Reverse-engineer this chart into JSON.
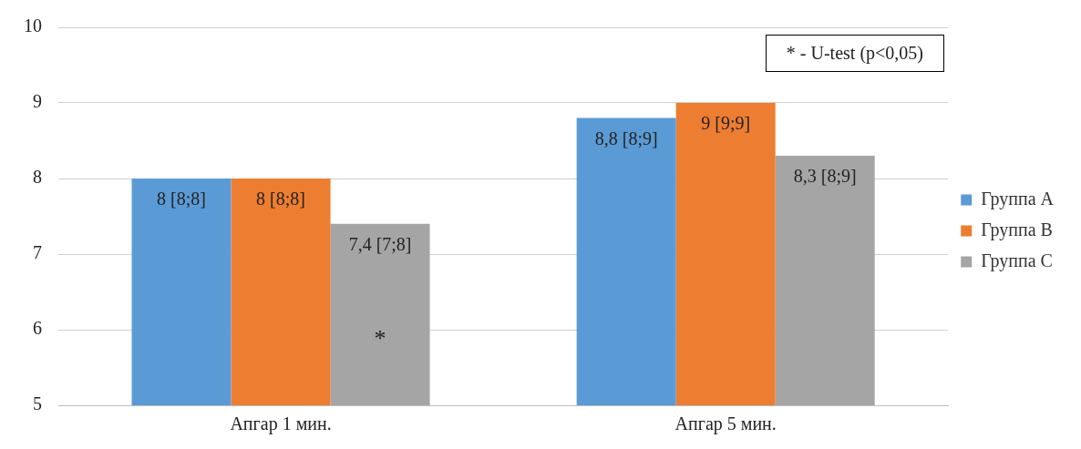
{
  "chart_data": {
    "type": "bar",
    "categories": [
      "Апгар 1 мин.",
      "Апгар 5 мин."
    ],
    "series": [
      {
        "name": "Группа A",
        "color": "#5b9bd5",
        "values": [
          8,
          8.8
        ],
        "value_labels": [
          "8 [8;8]",
          "8,8 [8;9]"
        ]
      },
      {
        "name": "Группа B",
        "color": "#ed7d31",
        "values": [
          8,
          9
        ],
        "value_labels": [
          "8 [8;8]",
          "9 [9;9]"
        ]
      },
      {
        "name": "Группа C",
        "color": "#a5a5a5",
        "values": [
          7.4,
          8.3
        ],
        "value_labels": [
          "7,4 [7;8]",
          "8,3 [8;9]"
        ]
      }
    ],
    "ylim": [
      5,
      10
    ],
    "yticks": [
      5,
      6,
      7,
      8,
      9,
      10
    ],
    "grid": "y",
    "legend": "right",
    "annotations": [
      "* - U-test (p<0,05)",
      "*"
    ]
  }
}
